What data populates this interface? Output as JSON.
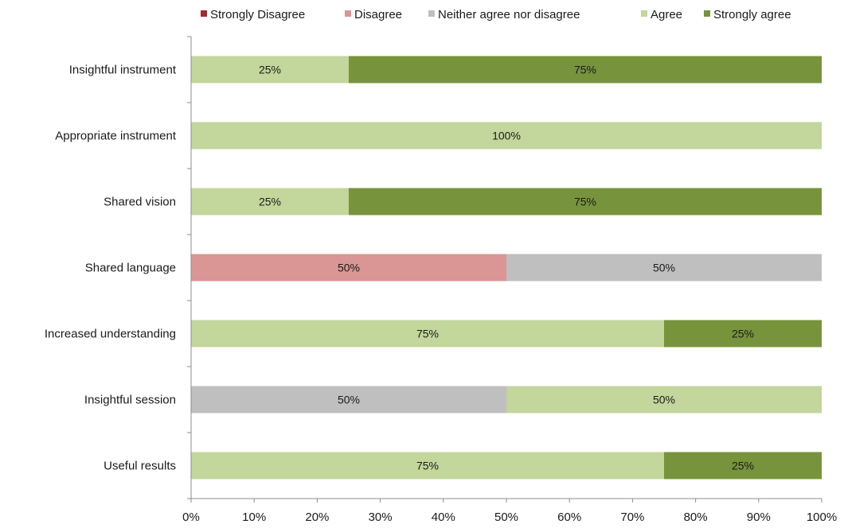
{
  "chart_data": {
    "type": "bar",
    "orientation": "horizontal",
    "stacked": true,
    "categories": [
      "Insightful instrument",
      "Appropriate instrument",
      "Shared vision",
      "Shared language",
      "Increased understanding",
      "Insightful session",
      "Useful results"
    ],
    "series": [
      {
        "name": "Strongly Disagree",
        "color": "#a32a2e",
        "values": [
          0,
          0,
          0,
          0,
          0,
          0,
          0
        ]
      },
      {
        "name": "Disagree",
        "color": "#d99694",
        "values": [
          0,
          0,
          0,
          50,
          0,
          0,
          0
        ]
      },
      {
        "name": "Neither agree nor disagree",
        "color": "#bfbfbf",
        "values": [
          0,
          0,
          0,
          50,
          0,
          50,
          0
        ]
      },
      {
        "name": "Agree",
        "color": "#c3d69b",
        "values": [
          25,
          100,
          25,
          0,
          75,
          50,
          75
        ]
      },
      {
        "name": "Strongly agree",
        "color": "#77933c",
        "values": [
          75,
          0,
          75,
          0,
          25,
          0,
          25
        ]
      }
    ],
    "xlim": [
      0,
      100
    ],
    "x_ticks": [
      "0%",
      "10%",
      "20%",
      "30%",
      "40%",
      "50%",
      "60%",
      "70%",
      "80%",
      "90%",
      "100%"
    ],
    "value_suffix": "%",
    "legend_position": "top",
    "grid": false,
    "title": "",
    "xlabel": "",
    "ylabel": ""
  }
}
